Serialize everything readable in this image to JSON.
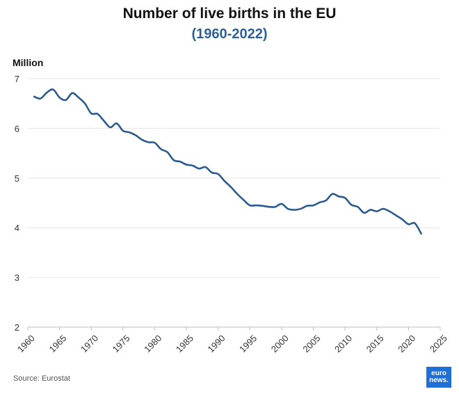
{
  "title": "Number of live births in the EU",
  "subtitle": "(1960-2022)",
  "source": "Source: Eurostat",
  "logo_text": [
    "euro",
    "news."
  ],
  "colors": {
    "line": "#2b5a8d",
    "subtitle": "#2f5f94",
    "logo": "#1f6fd6",
    "grid": "#e6e6e6"
  },
  "chart_data": {
    "type": "line",
    "ylabel": "Million",
    "xlim": [
      1960,
      2025
    ],
    "ylim": [
      2,
      7
    ],
    "x_ticks": [
      1960,
      1965,
      1970,
      1975,
      1980,
      1985,
      1990,
      1995,
      2000,
      2005,
      2010,
      2015,
      2020,
      2025
    ],
    "y_ticks": [
      2,
      3,
      4,
      5,
      6,
      7
    ],
    "grid": "horizontal",
    "x": [
      1961,
      1962,
      1963,
      1964,
      1965,
      1966,
      1967,
      1968,
      1969,
      1970,
      1971,
      1972,
      1973,
      1974,
      1975,
      1976,
      1977,
      1978,
      1979,
      1980,
      1981,
      1982,
      1983,
      1984,
      1985,
      1986,
      1987,
      1988,
      1989,
      1990,
      1991,
      1992,
      1993,
      1994,
      1995,
      1996,
      1997,
      1998,
      1999,
      2000,
      2001,
      2002,
      2003,
      2004,
      2005,
      2006,
      2007,
      2008,
      2009,
      2010,
      2011,
      2012,
      2013,
      2014,
      2015,
      2016,
      2017,
      2018,
      2019,
      2020,
      2021,
      2022
    ],
    "y": [
      6.64,
      6.6,
      6.72,
      6.78,
      6.62,
      6.57,
      6.71,
      6.62,
      6.5,
      6.3,
      6.29,
      6.15,
      6.02,
      6.1,
      5.95,
      5.92,
      5.86,
      5.77,
      5.72,
      5.71,
      5.58,
      5.52,
      5.36,
      5.33,
      5.27,
      5.25,
      5.19,
      5.22,
      5.11,
      5.08,
      4.94,
      4.82,
      4.68,
      4.56,
      4.45,
      4.45,
      4.44,
      4.42,
      4.42,
      4.48,
      4.38,
      4.36,
      4.38,
      4.44,
      4.45,
      4.51,
      4.55,
      4.68,
      4.63,
      4.6,
      4.46,
      4.42,
      4.3,
      4.36,
      4.33,
      4.38,
      4.33,
      4.25,
      4.17,
      4.07,
      4.09,
      3.88
    ]
  }
}
